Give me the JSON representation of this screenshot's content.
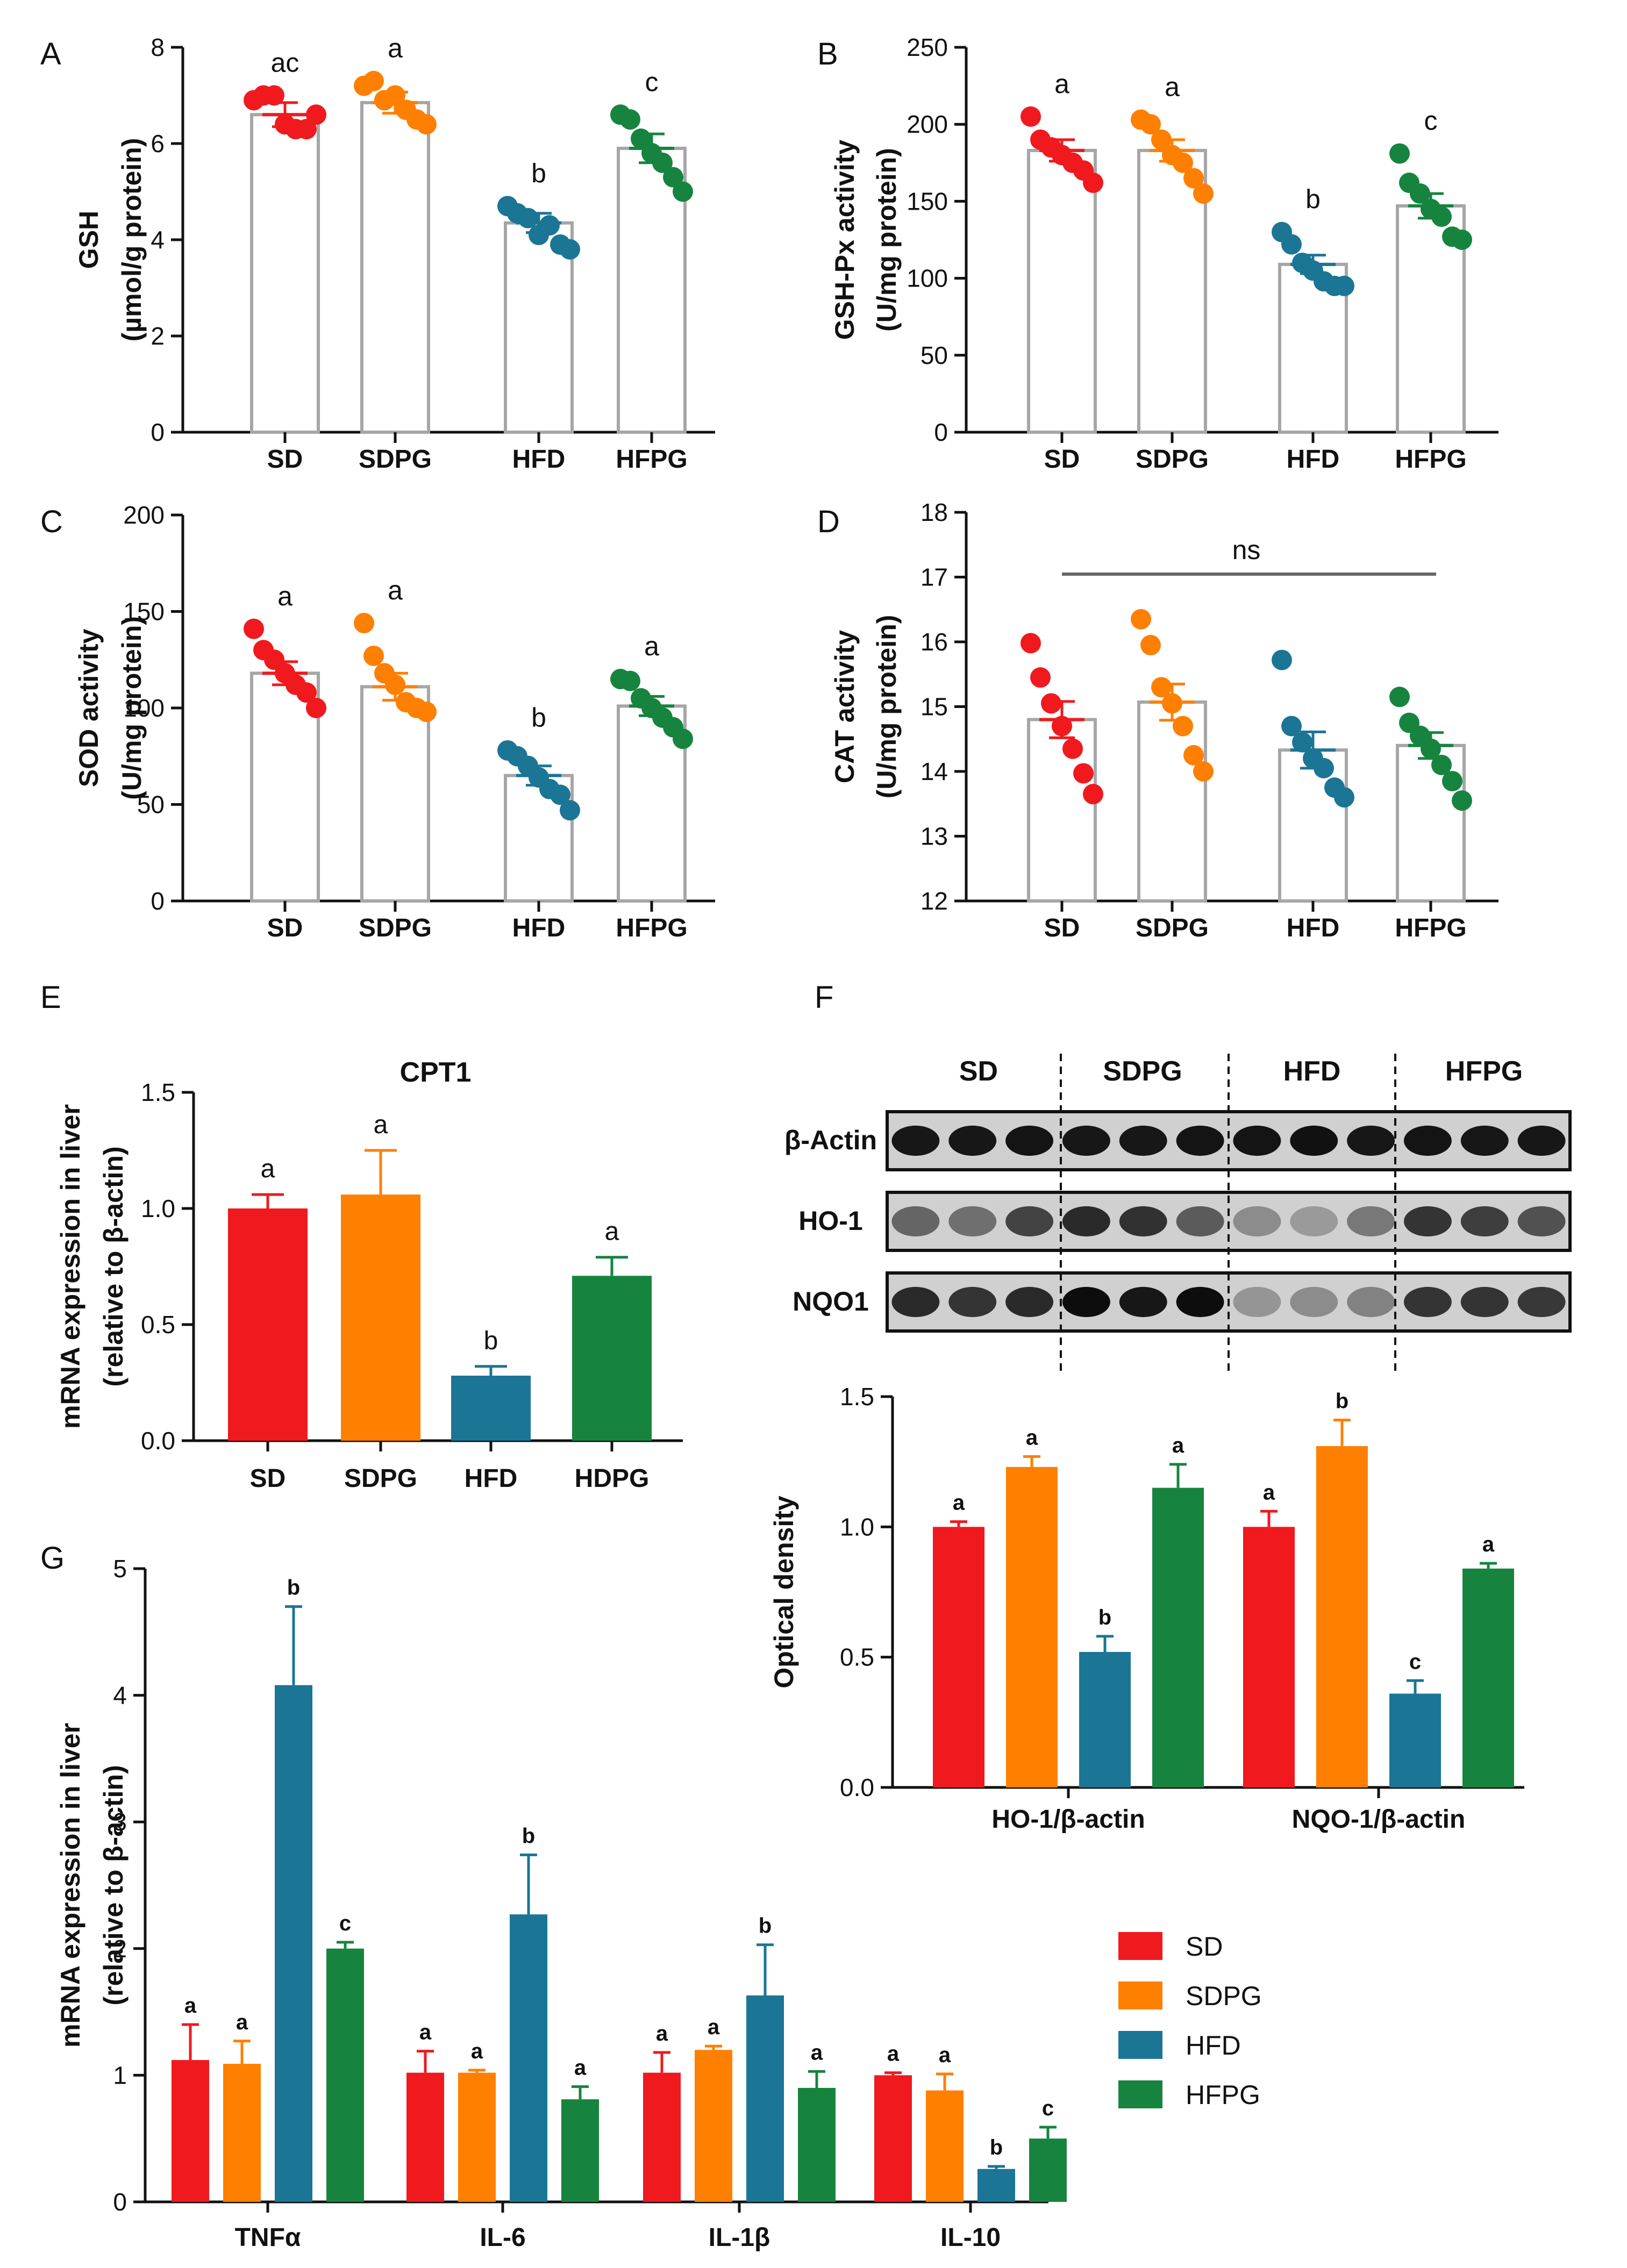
{
  "colors": {
    "SD": "#f0191e",
    "SDPG": "#ff7f00",
    "HFD": "#1b7595",
    "HFPG": "#16843f",
    "hollow_bar": "#a6a6a6",
    "axis": "#111111"
  },
  "chart_data": [
    {
      "id": "A",
      "panel_label": "A",
      "type": "bar",
      "style": "hollow-dot",
      "categories": [
        "SD",
        "SDPG",
        "HFD",
        "HFPG"
      ],
      "ylabel_lines": [
        "GSH",
        "(µmol/g protein)"
      ],
      "ylim": [
        0,
        8
      ],
      "yticks": [
        0,
        2,
        4,
        6,
        8
      ],
      "tick_labels": [
        "0",
        "2",
        "4",
        "6",
        "8"
      ],
      "values": [
        6.6,
        6.85,
        4.35,
        5.9
      ],
      "errors": [
        0.25,
        0.22,
        0.2,
        0.3
      ],
      "letters": [
        "ac",
        "a",
        "b",
        "c"
      ],
      "points": [
        [
          6.9,
          7.0,
          7.0,
          6.4,
          6.3,
          6.3,
          6.6
        ],
        [
          7.2,
          7.3,
          6.9,
          7.0,
          6.7,
          6.5,
          6.4
        ],
        [
          4.7,
          4.55,
          4.45,
          4.1,
          4.3,
          3.9,
          3.8
        ],
        [
          6.6,
          6.5,
          6.1,
          5.8,
          5.6,
          5.3,
          5.0
        ]
      ]
    },
    {
      "id": "B",
      "panel_label": "B",
      "type": "bar",
      "style": "hollow-dot",
      "categories": [
        "SD",
        "SDPG",
        "HFD",
        "HFPG"
      ],
      "ylabel_lines": [
        "GSH-Px activity",
        "(U/mg protein)"
      ],
      "ylim": [
        0,
        250
      ],
      "yticks": [
        0,
        50,
        100,
        150,
        200,
        250
      ],
      "tick_labels": [
        "0",
        "50",
        "100",
        "150",
        "200",
        "250"
      ],
      "values": [
        183,
        183,
        109,
        147
      ],
      "errors": [
        7,
        7,
        6,
        8
      ],
      "letters": [
        "a",
        "a",
        "b",
        "c"
      ],
      "points": [
        [
          205,
          190,
          185,
          180,
          175,
          170,
          162
        ],
        [
          203,
          200,
          190,
          180,
          175,
          165,
          155
        ],
        [
          130,
          122,
          110,
          105,
          98,
          95,
          95
        ],
        [
          181,
          162,
          155,
          145,
          140,
          127,
          125
        ]
      ]
    },
    {
      "id": "C",
      "panel_label": "C",
      "type": "bar",
      "style": "hollow-dot",
      "categories": [
        "SD",
        "SDPG",
        "HFD",
        "HFPG"
      ],
      "ylabel_lines": [
        "SOD activity",
        "(U/mg protein)"
      ],
      "ylim": [
        0,
        200
      ],
      "yticks": [
        0,
        50,
        100,
        150,
        200
      ],
      "tick_labels": [
        "0",
        "50",
        "100",
        "150",
        "200"
      ],
      "values": [
        118,
        111,
        65,
        101
      ],
      "errors": [
        6,
        7,
        5,
        5
      ],
      "letters": [
        "a",
        "a",
        "b",
        "a"
      ],
      "points": [
        [
          141,
          130,
          125,
          118,
          112,
          108,
          100
        ],
        [
          144,
          127,
          118,
          112,
          103,
          100,
          98
        ],
        [
          78,
          75,
          70,
          64,
          58,
          55,
          47
        ],
        [
          115,
          114,
          105,
          100,
          95,
          90,
          84
        ]
      ]
    },
    {
      "id": "D",
      "panel_label": "D",
      "type": "bar",
      "style": "hollow-dot",
      "categories": [
        "SD",
        "SDPG",
        "HFD",
        "HFPG"
      ],
      "ylabel_lines": [
        "CAT activity",
        "(U/mg protein)"
      ],
      "ylim": [
        12,
        18
      ],
      "yticks": [
        12,
        13,
        14,
        15,
        16,
        17,
        18
      ],
      "tick_labels": [
        "12",
        "13",
        "14",
        "15",
        "16",
        "17",
        "18"
      ],
      "values": [
        14.8,
        15.07,
        14.33,
        14.4
      ],
      "errors": [
        0.28,
        0.28,
        0.28,
        0.2
      ],
      "letters": [],
      "bracket_label": "ns",
      "points": [
        [
          15.98,
          15.45,
          15.05,
          14.7,
          14.35,
          13.97,
          13.65
        ],
        [
          16.35,
          15.95,
          15.3,
          15.05,
          14.7,
          14.25,
          14.0
        ],
        [
          15.72,
          14.7,
          14.45,
          14.2,
          14.05,
          13.75,
          13.6
        ],
        [
          15.15,
          14.75,
          14.55,
          14.35,
          14.1,
          13.85,
          13.55
        ]
      ]
    },
    {
      "id": "E",
      "panel_label": "E",
      "type": "bar",
      "style": "solid",
      "title": "CPT1",
      "categories": [
        "SD",
        "SDPG",
        "HFD",
        "HDPG"
      ],
      "ylabel_lines": [
        "mRNA expression in liver",
        "(relative to β-actin)"
      ],
      "ylim": [
        0,
        1.5
      ],
      "yticks": [
        0,
        0.5,
        1,
        1.5
      ],
      "tick_labels": [
        "0.0",
        "0.5",
        "1.0",
        "1.5"
      ],
      "values": [
        1.0,
        1.06,
        0.28,
        0.71
      ],
      "errors": [
        0.06,
        0.19,
        0.04,
        0.08
      ],
      "letters": [
        "a",
        "a",
        "b",
        "a"
      ]
    },
    {
      "id": "F",
      "panel_label": "F",
      "type": "bar",
      "style": "solid-grouped",
      "categories": [
        "HO-1/β-actin",
        "NQO-1/β-actin"
      ],
      "series_names": [
        "SD",
        "SDPG",
        "HFD",
        "HFPG"
      ],
      "ylabel_lines": [
        "Optical density"
      ],
      "ylim": [
        0,
        1.5
      ],
      "yticks": [
        0,
        0.5,
        1,
        1.5
      ],
      "tick_labels": [
        "0.0",
        "0.5",
        "1.0",
        "1.5"
      ],
      "values": [
        [
          1.0,
          1.23,
          0.52,
          1.15
        ],
        [
          1.0,
          1.31,
          0.36,
          0.84
        ]
      ],
      "errors": [
        [
          0.02,
          0.04,
          0.06,
          0.09
        ],
        [
          0.06,
          0.1,
          0.05,
          0.02
        ]
      ],
      "letters": [
        [
          "a",
          "a",
          "b",
          "a"
        ],
        [
          "a",
          "b",
          "c",
          "a"
        ]
      ]
    },
    {
      "id": "G",
      "panel_label": "G",
      "type": "bar",
      "style": "solid-grouped",
      "categories": [
        "TNFα",
        "IL-6",
        "IL-1β",
        "IL-10"
      ],
      "series_names": [
        "SD",
        "SDPG",
        "HFD",
        "HFPG"
      ],
      "ylabel_lines": [
        "mRNA expression in liver",
        "(relative to β-actin)"
      ],
      "ylim": [
        0,
        5
      ],
      "yticks": [
        0,
        1,
        2,
        3,
        4,
        5
      ],
      "tick_labels": [
        "0",
        "1",
        "2",
        "3",
        "4",
        "5"
      ],
      "values": [
        [
          1.12,
          1.09,
          4.08,
          2.0
        ],
        [
          1.02,
          1.02,
          2.27,
          0.81
        ],
        [
          1.02,
          1.2,
          1.63,
          0.9
        ],
        [
          1.0,
          0.88,
          0.26,
          0.5
        ]
      ],
      "errors": [
        [
          0.28,
          0.18,
          0.62,
          0.05
        ],
        [
          0.17,
          0.02,
          0.47,
          0.1
        ],
        [
          0.16,
          0.03,
          0.4,
          0.13
        ],
        [
          0.02,
          0.13,
          0.02,
          0.09
        ]
      ],
      "letters": [
        [
          "a",
          "a",
          "b",
          "c"
        ],
        [
          "a",
          "a",
          "b",
          "a"
        ],
        [
          "a",
          "a",
          "b",
          "a"
        ],
        [
          "a",
          "a",
          "b",
          "c"
        ]
      ]
    }
  ],
  "legend": {
    "items": [
      "SD",
      "SDPG",
      "HFD",
      "HFPG"
    ]
  },
  "western_blot": {
    "group_labels": [
      "SD",
      "SDPG",
      "HFD",
      "HFPG"
    ],
    "row_labels": [
      "β-Actin",
      "HO-1",
      "NQO1"
    ],
    "band_intensity": [
      [
        0.95,
        0.95,
        0.97,
        0.95,
        0.95,
        0.96,
        0.97,
        0.98,
        0.95,
        0.96,
        0.95,
        0.95
      ],
      [
        0.55,
        0.5,
        0.72,
        0.85,
        0.82,
        0.6,
        0.35,
        0.28,
        0.45,
        0.8,
        0.75,
        0.65
      ],
      [
        0.85,
        0.8,
        0.85,
        1.0,
        0.95,
        1.0,
        0.3,
        0.35,
        0.4,
        0.8,
        0.8,
        0.78
      ]
    ]
  }
}
